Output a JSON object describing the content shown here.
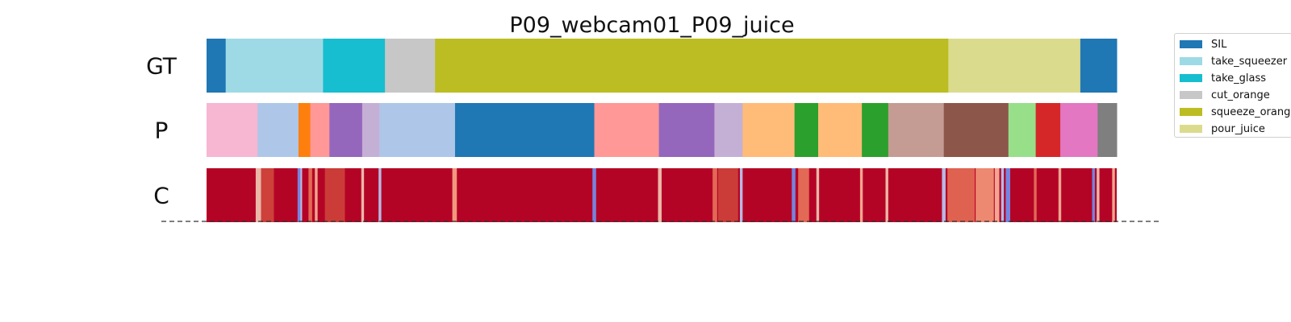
{
  "chart_data": {
    "type": "segmentation_timeline",
    "title": "P09_webcam01_P09_juice",
    "x_range": [
      0,
      1000
    ],
    "rows": [
      {
        "label": "GT",
        "segments": [
          {
            "start": 0,
            "end": 21,
            "color": "#1f77b4"
          },
          {
            "start": 21,
            "end": 128,
            "color": "#9edae5"
          },
          {
            "start": 128,
            "end": 196,
            "color": "#17becf"
          },
          {
            "start": 196,
            "end": 251,
            "color": "#c7c7c7"
          },
          {
            "start": 251,
            "end": 815,
            "color": "#bcbd22"
          },
          {
            "start": 815,
            "end": 960,
            "color": "#dbdb8d"
          },
          {
            "start": 960,
            "end": 1000,
            "color": "#1f77b4"
          }
        ]
      },
      {
        "label": "P",
        "segments": [
          {
            "start": 0,
            "end": 56,
            "color": "#f7b6d2"
          },
          {
            "start": 56,
            "end": 101,
            "color": "#aec7e8"
          },
          {
            "start": 101,
            "end": 114,
            "color": "#ff7f0e"
          },
          {
            "start": 114,
            "end": 135,
            "color": "#ff9896"
          },
          {
            "start": 135,
            "end": 171,
            "color": "#9467bd"
          },
          {
            "start": 171,
            "end": 190,
            "color": "#c5b0d5"
          },
          {
            "start": 190,
            "end": 273,
            "color": "#aec7e8"
          },
          {
            "start": 273,
            "end": 426,
            "color": "#1f77b4"
          },
          {
            "start": 426,
            "end": 497,
            "color": "#ff9896"
          },
          {
            "start": 497,
            "end": 558,
            "color": "#9467bd"
          },
          {
            "start": 558,
            "end": 589,
            "color": "#c5b0d5"
          },
          {
            "start": 589,
            "end": 646,
            "color": "#ffbb78"
          },
          {
            "start": 646,
            "end": 672,
            "color": "#2ca02c"
          },
          {
            "start": 672,
            "end": 720,
            "color": "#ffbb78"
          },
          {
            "start": 720,
            "end": 749,
            "color": "#2ca02c"
          },
          {
            "start": 749,
            "end": 810,
            "color": "#c49c94"
          },
          {
            "start": 810,
            "end": 881,
            "color": "#8c564b"
          },
          {
            "start": 881,
            "end": 911,
            "color": "#98df8a"
          },
          {
            "start": 911,
            "end": 938,
            "color": "#d62728"
          },
          {
            "start": 938,
            "end": 979,
            "color": "#e377c2"
          },
          {
            "start": 979,
            "end": 1000,
            "color": "#7f7f7f"
          }
        ]
      },
      {
        "label": "C",
        "base_color": "#b40426",
        "confidence_dips": [
          {
            "pos": 54,
            "width": 6,
            "color": "#f2cbb7"
          },
          {
            "pos": 60,
            "width": 14,
            "color": "#d0473d"
          },
          {
            "pos": 100,
            "width": 3,
            "color": "#6f92f3"
          },
          {
            "pos": 103,
            "width": 2,
            "color": "#b6cefa"
          },
          {
            "pos": 112,
            "width": 4,
            "color": "#e7745b"
          },
          {
            "pos": 119,
            "width": 3,
            "color": "#f7b89c"
          },
          {
            "pos": 130,
            "width": 22,
            "color": "#cd423b"
          },
          {
            "pos": 170,
            "width": 3,
            "color": "#f2cbb7"
          },
          {
            "pos": 189,
            "width": 3,
            "color": "#b6cefa"
          },
          {
            "pos": 270,
            "width": 5,
            "color": "#f7a889"
          },
          {
            "pos": 424,
            "width": 4,
            "color": "#6f92f3"
          },
          {
            "pos": 496,
            "width": 4,
            "color": "#f2cbb7"
          },
          {
            "pos": 556,
            "width": 5,
            "color": "#e7745b"
          },
          {
            "pos": 562,
            "width": 22,
            "color": "#cd423b"
          },
          {
            "pos": 586,
            "width": 3,
            "color": "#b6cefa"
          },
          {
            "pos": 643,
            "width": 4,
            "color": "#6f92f3"
          },
          {
            "pos": 650,
            "width": 12,
            "color": "#e7745b"
          },
          {
            "pos": 670,
            "width": 3,
            "color": "#f2cbb7"
          },
          {
            "pos": 718,
            "width": 3,
            "color": "#f7b89c"
          },
          {
            "pos": 746,
            "width": 3,
            "color": "#f2cbb7"
          },
          {
            "pos": 808,
            "width": 4,
            "color": "#b6cefa"
          },
          {
            "pos": 814,
            "width": 30,
            "color": "#e36c55"
          },
          {
            "pos": 845,
            "width": 20,
            "color": "#f4987a"
          },
          {
            "pos": 866,
            "width": 5,
            "color": "#f7b89c"
          },
          {
            "pos": 873,
            "width": 3,
            "color": "#b6cefa"
          },
          {
            "pos": 878,
            "width": 5,
            "color": "#6f92f3"
          },
          {
            "pos": 909,
            "width": 3,
            "color": "#e7745b"
          },
          {
            "pos": 936,
            "width": 3,
            "color": "#f7b89c"
          },
          {
            "pos": 973,
            "width": 3,
            "color": "#6f92f3"
          },
          {
            "pos": 978,
            "width": 3,
            "color": "#f2cbb7"
          },
          {
            "pos": 995,
            "width": 3,
            "color": "#f7b89c"
          }
        ]
      }
    ],
    "legend": [
      {
        "label": "SIL",
        "color": "#1f77b4"
      },
      {
        "label": "take_squeezer",
        "color": "#9edae5"
      },
      {
        "label": "take_glass",
        "color": "#17becf"
      },
      {
        "label": "cut_orange",
        "color": "#c7c7c7"
      },
      {
        "label": "squeeze_orange",
        "color": "#bcbd22"
      },
      {
        "label": "pour_juice",
        "color": "#dbdb8d"
      }
    ],
    "legend_placement": "upper-right, clipped at figure edge",
    "baseline": "dashed"
  }
}
